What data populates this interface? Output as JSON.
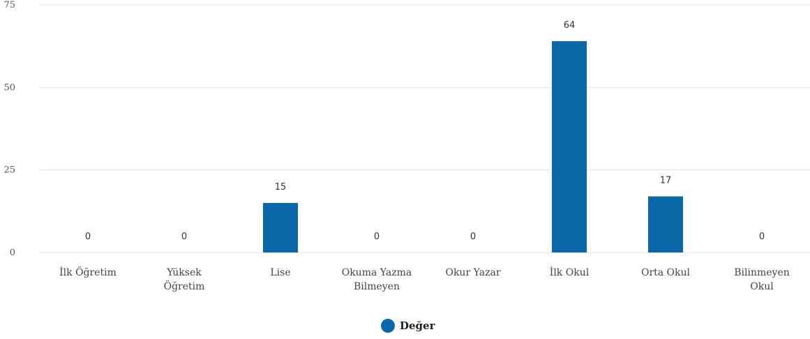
{
  "chart_data": {
    "type": "bar",
    "categories": [
      [
        "İlk Öğretim"
      ],
      [
        "Yüksek",
        "Öğretim"
      ],
      [
        "Lise"
      ],
      [
        "Okuma Yazma",
        "Bilmeyen"
      ],
      [
        "Okur Yazar"
      ],
      [
        "İlk Okul"
      ],
      [
        "Orta Okul"
      ],
      [
        "Bilinmeyen",
        "Okul"
      ]
    ],
    "series": [
      {
        "name": "Değer",
        "values": [
          0,
          0,
          15,
          0,
          0,
          64,
          17,
          0
        ],
        "color": "#0a67a8"
      }
    ],
    "ylim": [
      0,
      75
    ],
    "yticks": [
      0,
      25,
      50,
      75
    ],
    "grid": true,
    "legend_position": "bottom-center"
  }
}
